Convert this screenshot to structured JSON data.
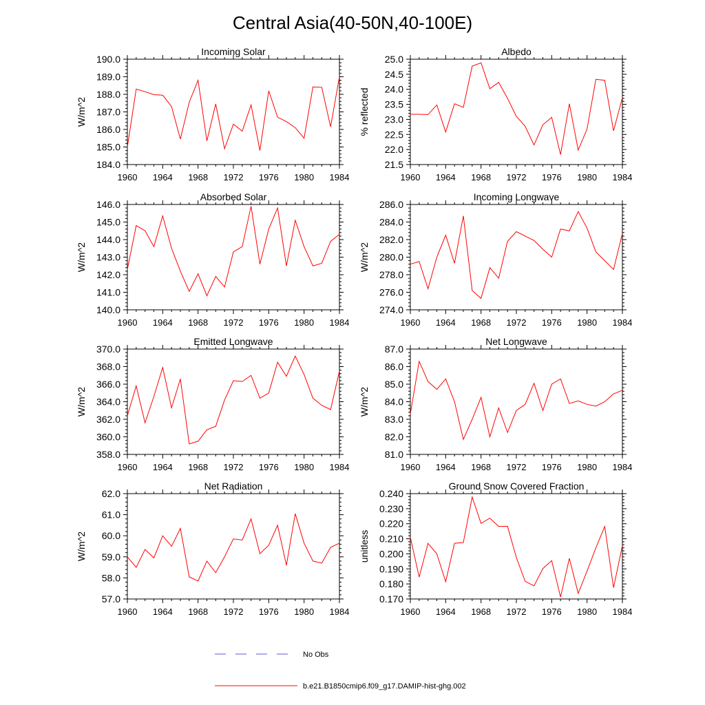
{
  "title": "Central Asia(40-50N,40-100E)",
  "x_tick_labels": [
    "1960",
    "1964",
    "1968",
    "1972",
    "1976",
    "1980",
    "1984"
  ],
  "legend": {
    "obs_label": "No Obs",
    "model_label": "b.e21.B1850cmip6.f09_g17.DAMIP-hist-ghg.002",
    "obs_color": "#5a5ad6",
    "model_color": "#ff0000"
  },
  "chart_data": [
    {
      "type": "line",
      "title": "Incoming Solar",
      "ylabel": "W/m^2",
      "xlim": [
        1960,
        1984
      ],
      "ylim": [
        184.0,
        190.0
      ],
      "y_ticks": [
        "184.0",
        "185.0",
        "186.0",
        "187.0",
        "188.0",
        "189.0",
        "190.0"
      ],
      "x": [
        1960,
        1961,
        1962,
        1963,
        1964,
        1965,
        1966,
        1967,
        1968,
        1969,
        1970,
        1971,
        1972,
        1973,
        1974,
        1975,
        1976,
        1977,
        1978,
        1979,
        1980,
        1981,
        1982,
        1983,
        1984
      ],
      "series": [
        {
          "name": "b.e21.B1850cmip6.f09_g17.DAMIP-hist-ghg.002",
          "values": [
            185.0,
            188.3,
            188.15,
            187.98,
            187.95,
            187.3,
            185.45,
            187.55,
            188.8,
            185.35,
            187.45,
            184.9,
            186.3,
            185.9,
            187.4,
            184.8,
            188.2,
            186.7,
            186.45,
            186.1,
            185.5,
            188.42,
            188.4,
            186.15,
            189.0
          ]
        }
      ]
    },
    {
      "type": "line",
      "title": "Albedo",
      "ylabel": "% reflected",
      "xlim": [
        1960,
        1984
      ],
      "ylim": [
        21.5,
        25.0
      ],
      "y_ticks": [
        "21.5",
        "22.0",
        "22.5",
        "23.0",
        "23.5",
        "24.0",
        "24.5",
        "25.0"
      ],
      "x": [
        1960,
        1961,
        1962,
        1963,
        1964,
        1965,
        1966,
        1967,
        1968,
        1969,
        1970,
        1971,
        1972,
        1973,
        1974,
        1975,
        1976,
        1977,
        1978,
        1979,
        1980,
        1981,
        1982,
        1983,
        1984
      ],
      "series": [
        {
          "name": "b.e21.B1850cmip6.f09_g17.DAMIP-hist-ghg.002",
          "values": [
            23.17,
            23.17,
            23.16,
            23.48,
            22.58,
            23.52,
            23.4,
            24.77,
            24.88,
            24.02,
            24.23,
            23.7,
            23.1,
            22.77,
            22.15,
            22.82,
            23.07,
            21.83,
            23.52,
            21.98,
            22.68,
            24.33,
            24.3,
            22.62,
            23.72
          ]
        }
      ]
    },
    {
      "type": "line",
      "title": "Absorbed Solar",
      "ylabel": "W/m^2",
      "xlim": [
        1960,
        1984
      ],
      "ylim": [
        140.0,
        146.0
      ],
      "y_ticks": [
        "140.0",
        "141.0",
        "142.0",
        "143.0",
        "144.0",
        "145.0",
        "146.0"
      ],
      "x": [
        1960,
        1961,
        1962,
        1963,
        1964,
        1965,
        1966,
        1967,
        1968,
        1969,
        1970,
        1971,
        1972,
        1973,
        1974,
        1975,
        1976,
        1977,
        1978,
        1979,
        1980,
        1981,
        1982,
        1983,
        1984
      ],
      "series": [
        {
          "name": "b.e21.B1850cmip6.f09_g17.DAMIP-hist-ghg.002",
          "values": [
            142.3,
            144.8,
            144.5,
            143.6,
            145.35,
            143.5,
            142.2,
            141.05,
            142.05,
            140.8,
            141.9,
            141.3,
            143.3,
            143.6,
            145.9,
            142.6,
            144.6,
            145.8,
            142.5,
            145.1,
            143.6,
            142.5,
            142.65,
            143.9,
            144.3
          ]
        }
      ]
    },
    {
      "type": "line",
      "title": "Incoming Longwave",
      "ylabel": "W/m^2",
      "xlim": [
        1960,
        1984
      ],
      "ylim": [
        274.0,
        286.0
      ],
      "y_ticks": [
        "274.0",
        "276.0",
        "278.0",
        "280.0",
        "282.0",
        "284.0",
        "286.0"
      ],
      "x": [
        1960,
        1961,
        1962,
        1963,
        1964,
        1965,
        1966,
        1967,
        1968,
        1969,
        1970,
        1971,
        1972,
        1973,
        1974,
        1975,
        1976,
        1977,
        1978,
        1979,
        1980,
        1981,
        1982,
        1983,
        1984
      ],
      "series": [
        {
          "name": "b.e21.B1850cmip6.f09_g17.DAMIP-hist-ghg.002",
          "values": [
            279.2,
            279.5,
            276.4,
            280.0,
            282.5,
            279.3,
            284.7,
            276.2,
            275.3,
            278.8,
            277.6,
            281.8,
            282.9,
            282.4,
            281.9,
            280.9,
            280.0,
            283.2,
            283.0,
            285.2,
            283.3,
            280.6,
            279.6,
            278.6,
            282.7
          ]
        }
      ]
    },
    {
      "type": "line",
      "title": "Emitted Longwave",
      "ylabel": "W/m^2",
      "xlim": [
        1960,
        1984
      ],
      "ylim": [
        358.0,
        370.0
      ],
      "y_ticks": [
        "358.0",
        "360.0",
        "362.0",
        "364.0",
        "366.0",
        "368.0",
        "370.0"
      ],
      "x": [
        1960,
        1961,
        1962,
        1963,
        1964,
        1965,
        1966,
        1967,
        1968,
        1969,
        1970,
        1971,
        1972,
        1973,
        1974,
        1975,
        1976,
        1977,
        1978,
        1979,
        1980,
        1981,
        1982,
        1983,
        1984
      ],
      "series": [
        {
          "name": "b.e21.B1850cmip6.f09_g17.DAMIP-hist-ghg.002",
          "values": [
            362.4,
            365.8,
            361.6,
            364.6,
            367.9,
            363.3,
            366.6,
            359.2,
            359.5,
            360.8,
            361.2,
            364.2,
            366.4,
            366.3,
            367.0,
            364.4,
            365.0,
            368.5,
            366.9,
            369.2,
            367.1,
            364.4,
            363.6,
            363.1,
            367.5
          ]
        }
      ]
    },
    {
      "type": "line",
      "title": "Net Longwave",
      "ylabel": "W/m^2",
      "xlim": [
        1960,
        1984
      ],
      "ylim": [
        81.0,
        87.0
      ],
      "y_ticks": [
        "81.0",
        "82.0",
        "83.0",
        "84.0",
        "85.0",
        "86.0",
        "87.0"
      ],
      "x": [
        1960,
        1961,
        1962,
        1963,
        1964,
        1965,
        1966,
        1967,
        1968,
        1969,
        1970,
        1971,
        1972,
        1973,
        1974,
        1975,
        1976,
        1977,
        1978,
        1979,
        1980,
        1981,
        1982,
        1983,
        1984
      ],
      "series": [
        {
          "name": "b.e21.B1850cmip6.f09_g17.DAMIP-hist-ghg.002",
          "values": [
            83.3,
            86.3,
            85.15,
            84.7,
            85.3,
            84.0,
            81.85,
            83.0,
            84.25,
            82.0,
            83.65,
            82.25,
            83.5,
            83.85,
            85.05,
            83.5,
            85.0,
            85.3,
            83.9,
            84.05,
            83.85,
            83.75,
            84.0,
            84.45,
            84.65
          ]
        }
      ]
    },
    {
      "type": "line",
      "title": "Net Radiation",
      "ylabel": "W/m^2",
      "xlim": [
        1960,
        1984
      ],
      "ylim": [
        57.0,
        62.0
      ],
      "y_ticks": [
        "57.0",
        "58.0",
        "59.0",
        "60.0",
        "61.0",
        "62.0"
      ],
      "x": [
        1960,
        1961,
        1962,
        1963,
        1964,
        1965,
        1966,
        1967,
        1968,
        1969,
        1970,
        1971,
        1972,
        1973,
        1974,
        1975,
        1976,
        1977,
        1978,
        1979,
        1980,
        1981,
        1982,
        1983,
        1984
      ],
      "series": [
        {
          "name": "b.e21.B1850cmip6.f09_g17.DAMIP-hist-ghg.002",
          "values": [
            59.0,
            58.5,
            59.35,
            58.95,
            60.0,
            59.5,
            60.35,
            58.05,
            57.85,
            58.8,
            58.25,
            59.0,
            59.85,
            59.8,
            60.8,
            59.15,
            59.55,
            60.5,
            58.6,
            61.05,
            59.65,
            58.8,
            58.7,
            59.45,
            59.65
          ]
        }
      ]
    },
    {
      "type": "line",
      "title": "Ground Snow Covered Fraction",
      "ylabel": "unitless",
      "xlim": [
        1960,
        1984
      ],
      "ylim": [
        0.17,
        0.24
      ],
      "y_ticks": [
        "0.170",
        "0.180",
        "0.190",
        "0.200",
        "0.210",
        "0.220",
        "0.230",
        "0.240"
      ],
      "x": [
        1960,
        1961,
        1962,
        1963,
        1964,
        1965,
        1966,
        1967,
        1968,
        1969,
        1970,
        1971,
        1972,
        1973,
        1974,
        1975,
        1976,
        1977,
        1978,
        1979,
        1980,
        1981,
        1982,
        1983,
        1984
      ],
      "series": [
        {
          "name": "b.e21.B1850cmip6.f09_g17.DAMIP-hist-ghg.002",
          "values": [
            0.211,
            0.1845,
            0.207,
            0.2,
            0.1815,
            0.207,
            0.2075,
            0.2378,
            0.2202,
            0.2237,
            0.2182,
            0.2183,
            0.1975,
            0.1817,
            0.1787,
            0.1902,
            0.1955,
            0.1713,
            0.197,
            0.1737,
            0.1885,
            0.204,
            0.2182,
            0.1775,
            0.2055
          ]
        }
      ]
    }
  ]
}
